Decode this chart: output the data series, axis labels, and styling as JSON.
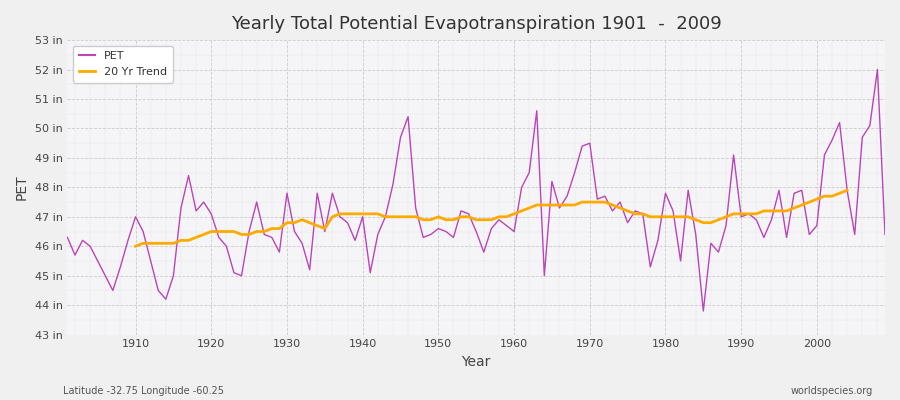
{
  "title": "Yearly Total Potential Evapotranspiration 1901  -  2009",
  "xlabel": "Year",
  "ylabel": "PET",
  "subtitle_left": "Latitude -32.75 Longitude -60.25",
  "subtitle_right": "worldspecies.org",
  "pet_color": "#bb44bb",
  "trend_color": "#ffaa00",
  "bg_outer_color": "#f0f0f0",
  "bg_plot_color": "#f5f5f8",
  "ylim": [
    43,
    53
  ],
  "yticks": [
    43,
    44,
    45,
    46,
    47,
    48,
    49,
    50,
    51,
    52,
    53
  ],
  "ytick_labels": [
    "43 in",
    "44 in",
    "45 in",
    "46 in",
    "47 in",
    "48 in",
    "49 in",
    "50 in",
    "51 in",
    "52 in",
    "53 in"
  ],
  "xlim": [
    1901,
    2009
  ],
  "xticks": [
    1910,
    1920,
    1930,
    1940,
    1950,
    1960,
    1970,
    1980,
    1990,
    2000
  ],
  "years": [
    1901,
    1902,
    1903,
    1904,
    1905,
    1906,
    1907,
    1908,
    1909,
    1910,
    1911,
    1912,
    1913,
    1914,
    1915,
    1916,
    1917,
    1918,
    1919,
    1920,
    1921,
    1922,
    1923,
    1924,
    1925,
    1926,
    1927,
    1928,
    1929,
    1930,
    1931,
    1932,
    1933,
    1934,
    1935,
    1936,
    1937,
    1938,
    1939,
    1940,
    1941,
    1942,
    1943,
    1944,
    1945,
    1946,
    1947,
    1948,
    1949,
    1950,
    1951,
    1952,
    1953,
    1954,
    1955,
    1956,
    1957,
    1958,
    1959,
    1960,
    1961,
    1962,
    1963,
    1964,
    1965,
    1966,
    1967,
    1968,
    1969,
    1970,
    1971,
    1972,
    1973,
    1974,
    1975,
    1976,
    1977,
    1978,
    1979,
    1980,
    1981,
    1982,
    1983,
    1984,
    1985,
    1986,
    1987,
    1988,
    1989,
    1990,
    1991,
    1992,
    1993,
    1994,
    1995,
    1996,
    1997,
    1998,
    1999,
    2000,
    2001,
    2002,
    2003,
    2004,
    2005,
    2006,
    2007,
    2008,
    2009
  ],
  "pet_values": [
    46.3,
    45.7,
    46.2,
    46.0,
    45.5,
    45.0,
    44.5,
    45.3,
    46.2,
    47.0,
    46.5,
    45.5,
    44.5,
    44.2,
    45.0,
    47.3,
    48.4,
    47.2,
    47.5,
    47.1,
    46.3,
    46.0,
    45.1,
    45.0,
    46.5,
    47.5,
    46.4,
    46.3,
    45.8,
    47.8,
    46.5,
    46.1,
    45.2,
    47.8,
    46.5,
    47.8,
    47.0,
    46.8,
    46.2,
    47.0,
    45.1,
    46.4,
    47.0,
    48.1,
    49.7,
    50.4,
    47.3,
    46.3,
    46.4,
    46.6,
    46.5,
    46.3,
    47.2,
    47.1,
    46.5,
    45.8,
    46.6,
    46.9,
    46.7,
    46.5,
    48.0,
    48.5,
    50.6,
    45.0,
    48.2,
    47.3,
    47.7,
    48.5,
    49.4,
    49.5,
    47.6,
    47.7,
    47.2,
    47.5,
    46.8,
    47.2,
    47.1,
    45.3,
    46.2,
    47.8,
    47.2,
    45.5,
    47.9,
    46.4,
    43.8,
    46.1,
    45.8,
    46.7,
    49.1,
    47.0,
    47.1,
    46.9,
    46.3,
    46.9,
    47.9,
    46.3,
    47.8,
    47.9,
    46.4,
    46.7,
    49.1,
    49.6,
    50.2,
    47.9,
    46.4,
    49.7,
    50.1,
    52.0,
    46.4
  ],
  "trend_values": [
    null,
    null,
    null,
    null,
    null,
    null,
    null,
    null,
    null,
    46.0,
    46.1,
    46.1,
    46.1,
    46.1,
    46.1,
    46.2,
    46.2,
    46.3,
    46.4,
    46.5,
    46.5,
    46.5,
    46.5,
    46.4,
    46.4,
    46.5,
    46.5,
    46.6,
    46.6,
    46.8,
    46.8,
    46.9,
    46.8,
    46.7,
    46.6,
    47.0,
    47.1,
    47.1,
    47.1,
    47.1,
    47.1,
    47.1,
    47.0,
    47.0,
    47.0,
    47.0,
    47.0,
    46.9,
    46.9,
    47.0,
    46.9,
    46.9,
    47.0,
    47.0,
    46.9,
    46.9,
    46.9,
    47.0,
    47.0,
    47.1,
    47.2,
    47.3,
    47.4,
    47.4,
    47.4,
    47.4,
    47.4,
    47.4,
    47.5,
    47.5,
    47.5,
    47.5,
    47.4,
    47.3,
    47.2,
    47.1,
    47.1,
    47.0,
    47.0,
    47.0,
    47.0,
    47.0,
    47.0,
    46.9,
    46.8,
    46.8,
    46.9,
    47.0,
    47.1,
    47.1,
    47.1,
    47.1,
    47.2,
    47.2,
    47.2,
    47.2,
    47.3,
    47.4,
    47.5,
    47.6,
    47.7,
    47.7,
    47.8,
    47.9,
    null,
    null,
    null,
    null,
    null
  ]
}
